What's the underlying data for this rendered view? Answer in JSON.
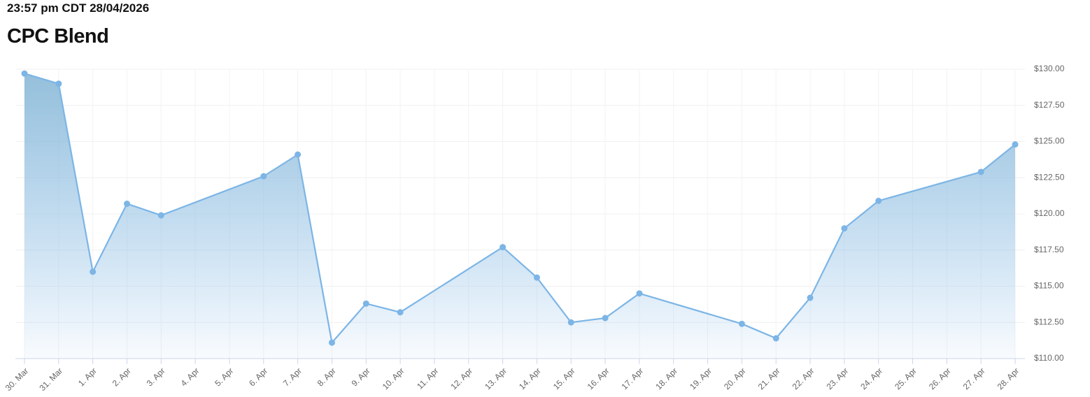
{
  "header": {
    "timestamp": "23:57 pm CDT 28/04/2026"
  },
  "chart_data": {
    "type": "area",
    "title": "CPC Blend",
    "categories": [
      "30. Mar",
      "31. Mar",
      "1. Apr",
      "2. Apr",
      "3. Apr",
      "4. Apr",
      "5. Apr",
      "6. Apr",
      "7. Apr",
      "8. Apr",
      "9. Apr",
      "10. Apr",
      "11. Apr",
      "12. Apr",
      "13. Apr",
      "14. Apr",
      "15. Apr",
      "16. Apr",
      "17. Apr",
      "18. Apr",
      "19. Apr",
      "20. Apr",
      "21. Apr",
      "22. Apr",
      "23. Apr",
      "24. Apr",
      "25. Apr",
      "26. Apr",
      "27. Apr",
      "28. Apr"
    ],
    "x": [
      "30. Mar",
      "31. Mar",
      "1. Apr",
      "2. Apr",
      "3. Apr",
      "6. Apr",
      "7. Apr",
      "8. Apr",
      "9. Apr",
      "10. Apr",
      "13. Apr",
      "14. Apr",
      "15. Apr",
      "16. Apr",
      "17. Apr",
      "20. Apr",
      "21. Apr",
      "22. Apr",
      "23. Apr",
      "24. Apr",
      "27. Apr",
      "28. Apr"
    ],
    "values": [
      129.7,
      129.0,
      116.0,
      120.7,
      119.9,
      122.6,
      124.1,
      111.1,
      113.8,
      113.2,
      117.7,
      115.6,
      112.5,
      112.8,
      114.5,
      112.4,
      111.4,
      114.2,
      119.0,
      120.9,
      122.9,
      124.8
    ],
    "color": "#7cb5e6",
    "ylim": [
      110,
      130
    ],
    "yticks": [
      {
        "value": 110,
        "label": "$110.00"
      },
      {
        "value": 112.5,
        "label": "$112.50"
      },
      {
        "value": 115,
        "label": "$115.00"
      },
      {
        "value": 117.5,
        "label": "$117.50"
      },
      {
        "value": 120,
        "label": "$120.00"
      },
      {
        "value": 122.5,
        "label": "$122.50"
      },
      {
        "value": 125,
        "label": "$125.00"
      },
      {
        "value": 127.5,
        "label": "$127.50"
      },
      {
        "value": 130,
        "label": "$130.00"
      }
    ],
    "grid": true
  }
}
